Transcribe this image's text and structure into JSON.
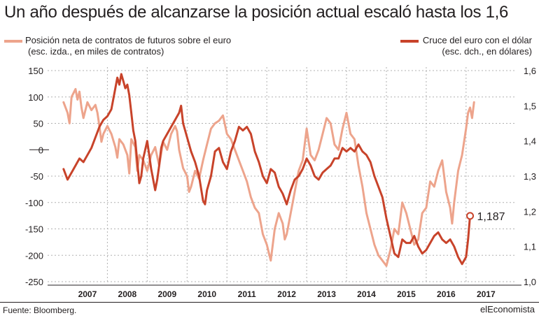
{
  "title": "Un año después de alcanzarse la posición actual escaló hasta los 1,6",
  "legend": {
    "left": {
      "line1": "Posición neta de contratos de futuros sobre el euro",
      "line2": "(esc. izda., en miles de contratos)"
    },
    "right": {
      "line1": "Cruce del euro con el dólar",
      "line2": "(esc. dch., en dólares)"
    }
  },
  "colors": {
    "positions": "#eda48c",
    "eurusd": "#c8432a",
    "text": "#231f20",
    "grid": "#b0b0b0"
  },
  "source": "Fuente: Bloomberg.",
  "brand": "elEconomista",
  "chart_data": {
    "type": "line",
    "x_axis": {
      "ticks": [
        "2007",
        "2008",
        "2009",
        "2010",
        "2011",
        "2012",
        "2013",
        "2014",
        "2015",
        "2016",
        "2017"
      ],
      "range": [
        2006.5,
        2017.6
      ]
    },
    "y_left": {
      "ylim": [
        -250,
        150
      ],
      "ticks": [
        150,
        100,
        50,
        0,
        -50,
        -100,
        -150,
        -200,
        -250
      ],
      "tick_labels": [
        "150",
        "100",
        "50",
        "0",
        "-50",
        "-100",
        "-150",
        "-200",
        "-250"
      ]
    },
    "y_right": {
      "ylim": [
        1.0,
        1.6
      ],
      "ticks": [
        1.6,
        1.5,
        1.4,
        1.3,
        1.2,
        1.1,
        1.0
      ],
      "tick_labels": [
        "1,6",
        "1,5",
        "1,4",
        "1,3",
        "1,2",
        "1,1",
        "1,0"
      ]
    },
    "annotation": {
      "text": "1,187",
      "x": 2017.1,
      "y": 1.187
    },
    "series": [
      {
        "name": "Posición neta de contratos de futuros sobre el euro",
        "axis": "left",
        "x": [
          2006.9,
          2007.0,
          2007.05,
          2007.1,
          2007.2,
          2007.25,
          2007.3,
          2007.35,
          2007.4,
          2007.5,
          2007.6,
          2007.7,
          2007.75,
          2007.8,
          2007.85,
          2007.9,
          2008.0,
          2008.1,
          2008.2,
          2008.25,
          2008.3,
          2008.4,
          2008.5,
          2008.55,
          2008.6,
          2008.7,
          2008.75,
          2008.8,
          2008.9,
          2009.0,
          2009.1,
          2009.2,
          2009.3,
          2009.4,
          2009.5,
          2009.6,
          2009.7,
          2009.75,
          2009.8,
          2009.9,
          2010.0,
          2010.05,
          2010.1,
          2010.2,
          2010.3,
          2010.4,
          2010.5,
          2010.6,
          2010.7,
          2010.8,
          2010.9,
          2011.0,
          2011.1,
          2011.2,
          2011.3,
          2011.4,
          2011.5,
          2011.6,
          2011.7,
          2011.8,
          2011.9,
          2012.0,
          2012.1,
          2012.2,
          2012.3,
          2012.4,
          2012.45,
          2012.5,
          2012.55,
          2012.6,
          2012.7,
          2012.8,
          2012.9,
          2013.0,
          2013.1,
          2013.2,
          2013.3,
          2013.4,
          2013.5,
          2013.6,
          2013.7,
          2013.8,
          2013.9,
          2014.0,
          2014.1,
          2014.2,
          2014.3,
          2014.4,
          2014.5,
          2014.6,
          2014.7,
          2014.8,
          2014.9,
          2015.0,
          2015.1,
          2015.2,
          2015.3,
          2015.4,
          2015.5,
          2015.6,
          2015.7,
          2015.8,
          2015.9,
          2016.0,
          2016.1,
          2016.2,
          2016.3,
          2016.4,
          2016.5,
          2016.6,
          2016.65,
          2016.7,
          2016.8,
          2016.9,
          2017.0,
          2017.05,
          2017.1,
          2017.15,
          2017.2
        ],
        "values": [
          90,
          70,
          50,
          100,
          115,
          95,
          110,
          80,
          60,
          90,
          75,
          85,
          70,
          45,
          15,
          30,
          45,
          30,
          5,
          -15,
          20,
          10,
          -10,
          -45,
          20,
          5,
          -40,
          -10,
          -20,
          -40,
          -10,
          5,
          -30,
          15,
          0,
          30,
          45,
          35,
          0,
          -35,
          -50,
          -80,
          -70,
          -40,
          -55,
          -20,
          10,
          40,
          50,
          55,
          65,
          30,
          20,
          0,
          -20,
          -40,
          -60,
          -90,
          -110,
          -120,
          -160,
          -180,
          -210,
          -150,
          -120,
          -140,
          -170,
          -160,
          -140,
          -120,
          -80,
          -40,
          -20,
          40,
          -10,
          -20,
          0,
          30,
          60,
          50,
          10,
          0,
          40,
          70,
          30,
          20,
          -30,
          -70,
          -120,
          -150,
          -180,
          -200,
          -210,
          -220,
          -190,
          -150,
          -160,
          -100,
          -120,
          -150,
          -180,
          -170,
          -120,
          -110,
          -60,
          -70,
          -40,
          -20,
          -80,
          -110,
          -140,
          -100,
          -40,
          -10,
          40,
          70,
          80,
          60,
          90
        ],
        "color": "#eda48c"
      },
      {
        "name": "Cruce del euro con el dólar",
        "axis": "right",
        "x": [
          2006.9,
          2007.0,
          2007.1,
          2007.2,
          2007.3,
          2007.4,
          2007.5,
          2007.6,
          2007.7,
          2007.8,
          2007.9,
          2008.0,
          2008.1,
          2008.2,
          2008.25,
          2008.3,
          2008.35,
          2008.4,
          2008.45,
          2008.5,
          2008.55,
          2008.6,
          2008.65,
          2008.7,
          2008.75,
          2008.8,
          2008.85,
          2008.9,
          2009.0,
          2009.1,
          2009.2,
          2009.25,
          2009.3,
          2009.35,
          2009.4,
          2009.5,
          2009.6,
          2009.7,
          2009.8,
          2009.85,
          2009.9,
          2010.0,
          2010.1,
          2010.2,
          2010.3,
          2010.4,
          2010.45,
          2010.5,
          2010.6,
          2010.7,
          2010.8,
          2010.9,
          2011.0,
          2011.1,
          2011.2,
          2011.3,
          2011.4,
          2011.5,
          2011.6,
          2011.7,
          2011.8,
          2011.9,
          2012.0,
          2012.1,
          2012.2,
          2012.3,
          2012.4,
          2012.5,
          2012.6,
          2012.7,
          2012.8,
          2012.9,
          2013.0,
          2013.1,
          2013.2,
          2013.3,
          2013.4,
          2013.5,
          2013.6,
          2013.7,
          2013.8,
          2013.9,
          2014.0,
          2014.1,
          2014.2,
          2014.3,
          2014.4,
          2014.5,
          2014.6,
          2014.7,
          2014.8,
          2014.9,
          2015.0,
          2015.1,
          2015.2,
          2015.3,
          2015.4,
          2015.5,
          2015.6,
          2015.7,
          2015.8,
          2015.9,
          2016.0,
          2016.1,
          2016.2,
          2016.3,
          2016.4,
          2016.5,
          2016.6,
          2016.7,
          2016.8,
          2016.9,
          2017.0,
          2017.05,
          2017.1
        ],
        "values": [
          1.32,
          1.29,
          1.31,
          1.33,
          1.35,
          1.34,
          1.36,
          1.38,
          1.41,
          1.44,
          1.46,
          1.47,
          1.49,
          1.55,
          1.58,
          1.56,
          1.59,
          1.57,
          1.55,
          1.56,
          1.53,
          1.48,
          1.43,
          1.4,
          1.34,
          1.28,
          1.3,
          1.35,
          1.4,
          1.32,
          1.26,
          1.29,
          1.33,
          1.38,
          1.4,
          1.42,
          1.44,
          1.46,
          1.48,
          1.5,
          1.45,
          1.41,
          1.37,
          1.34,
          1.3,
          1.23,
          1.22,
          1.26,
          1.3,
          1.37,
          1.38,
          1.34,
          1.32,
          1.37,
          1.4,
          1.44,
          1.43,
          1.44,
          1.42,
          1.37,
          1.34,
          1.3,
          1.28,
          1.32,
          1.31,
          1.27,
          1.25,
          1.22,
          1.26,
          1.29,
          1.3,
          1.32,
          1.35,
          1.33,
          1.3,
          1.29,
          1.31,
          1.32,
          1.33,
          1.35,
          1.35,
          1.38,
          1.37,
          1.38,
          1.37,
          1.39,
          1.37,
          1.36,
          1.34,
          1.3,
          1.27,
          1.24,
          1.18,
          1.13,
          1.08,
          1.07,
          1.12,
          1.11,
          1.11,
          1.13,
          1.1,
          1.08,
          1.09,
          1.11,
          1.13,
          1.14,
          1.12,
          1.11,
          1.12,
          1.1,
          1.07,
          1.05,
          1.07,
          1.12,
          1.187
        ],
        "color": "#c8432a"
      }
    ]
  }
}
